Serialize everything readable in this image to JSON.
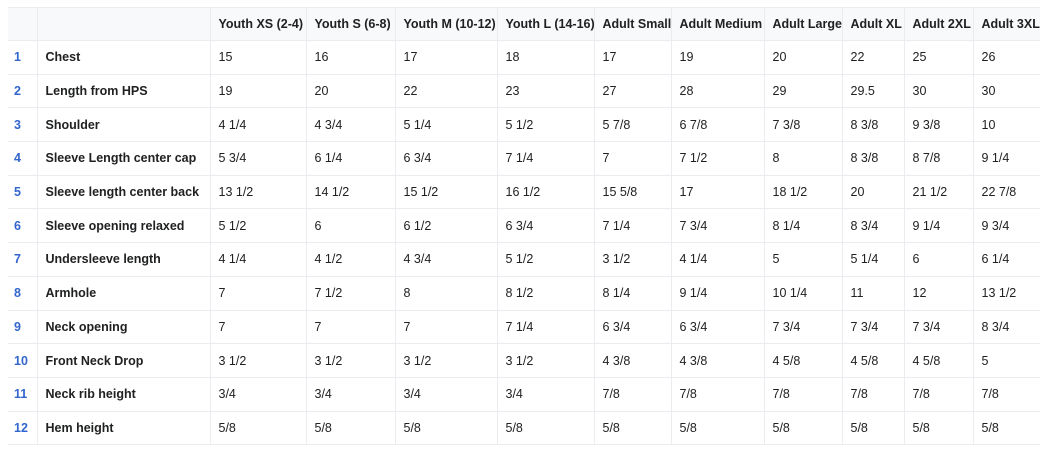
{
  "table": {
    "columns": [
      "Youth XS (2-4)",
      "Youth S (6-8)",
      "Youth M (10-12)",
      "Youth L (14-16)",
      "Adult Small",
      "Adult Medium",
      "Adult Large",
      "Adult XL",
      "Adult 2XL",
      "Adult 3XL"
    ],
    "rows": [
      {
        "number": "1",
        "label": "Chest",
        "values": [
          "15",
          "16",
          "17",
          "18",
          "17",
          "19",
          "20",
          "22",
          "25",
          "26"
        ]
      },
      {
        "number": "2",
        "label": "Length from HPS",
        "values": [
          "19",
          "20",
          "22",
          "23",
          "27",
          "28",
          "29",
          "29.5",
          "30",
          "30"
        ]
      },
      {
        "number": "3",
        "label": "Shoulder",
        "values": [
          "4 1/4",
          "4 3/4",
          "5 1/4",
          "5 1/2",
          "5 7/8",
          "6 7/8",
          "7 3/8",
          "8 3/8",
          "9 3/8",
          "10"
        ]
      },
      {
        "number": "4",
        "label": "Sleeve Length center cap",
        "values": [
          "5 3/4",
          "6 1/4",
          "6 3/4",
          "7 1/4",
          "7",
          "7 1/2",
          "8",
          "8 3/8",
          "8 7/8",
          "9 1/4"
        ]
      },
      {
        "number": "5",
        "label": "Sleeve length center back",
        "values": [
          "13 1/2",
          "14 1/2",
          "15 1/2",
          "16 1/2",
          "15 5/8",
          "17",
          "18 1/2",
          "20",
          "21 1/2",
          "22 7/8"
        ]
      },
      {
        "number": "6",
        "label": "Sleeve opening relaxed",
        "values": [
          "5 1/2",
          "6",
          "6 1/2",
          "6 3/4",
          "7 1/4",
          "7 3/4",
          "8 1/4",
          "8 3/4",
          "9 1/4",
          "9 3/4"
        ]
      },
      {
        "number": "7",
        "label": "Undersleeve length",
        "values": [
          "4 1/4",
          "4 1/2",
          "4 3/4",
          "5 1/2",
          "3 1/2",
          "4 1/4",
          "5",
          "5 1/4",
          "6",
          "6 1/4"
        ]
      },
      {
        "number": "8",
        "label": "Armhole",
        "values": [
          "7",
          "7 1/2",
          "8",
          "8 1/2",
          "8 1/4",
          "9 1/4",
          "10 1/4",
          "11",
          "12",
          "13 1/2"
        ]
      },
      {
        "number": "9",
        "label": "Neck opening",
        "values": [
          "7",
          "7",
          "7",
          "7 1/4",
          "6 3/4",
          "6 3/4",
          "7 3/4",
          "7 3/4",
          "7 3/4",
          "8 3/4"
        ]
      },
      {
        "number": "10",
        "label": "Front Neck Drop",
        "values": [
          "3 1/2",
          "3 1/2",
          "3 1/2",
          "3 1/2",
          "4 3/8",
          "4 3/8",
          "4 5/8",
          "4 5/8",
          "4 5/8",
          "5"
        ]
      },
      {
        "number": "11",
        "label": "Neck rib height",
        "values": [
          "3/4",
          "3/4",
          "3/4",
          "3/4",
          "7/8",
          "7/8",
          "7/8",
          "7/8",
          "7/8",
          "7/8"
        ]
      },
      {
        "number": "12",
        "label": "Hem height",
        "values": [
          "5/8",
          "5/8",
          "5/8",
          "5/8",
          "5/8",
          "5/8",
          "5/8",
          "5/8",
          "5/8",
          "5/8"
        ]
      }
    ]
  }
}
